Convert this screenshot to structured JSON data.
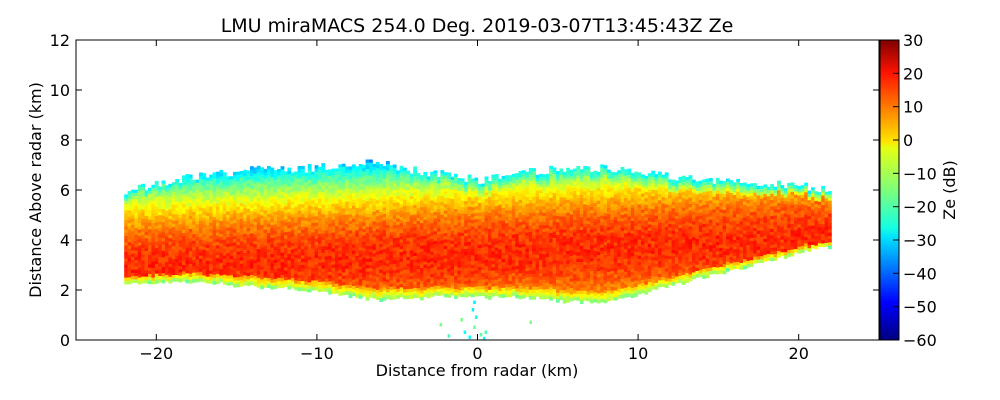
{
  "chart_data": {
    "type": "heatmap",
    "title": "LMU miraMACS 254.0 Deg. 2019-03-07T13:45:43Z  Ze",
    "xlabel": "Distance from radar (km)",
    "ylabel": "Distance Above radar  (km)",
    "xlim": [
      -25,
      25
    ],
    "ylim": [
      0,
      12
    ],
    "x_ticks": [
      "−20",
      "−10",
      "0",
      "10",
      "20"
    ],
    "x_tick_values": [
      -20,
      -10,
      0,
      10,
      20
    ],
    "y_ticks": [
      "0",
      "2",
      "4",
      "6",
      "8",
      "10",
      "12"
    ],
    "y_tick_values": [
      0,
      2,
      4,
      6,
      8,
      10,
      12
    ],
    "colorbar": {
      "label": "Ze (dB)",
      "range": [
        -60,
        30
      ],
      "ticks": [
        "30",
        "20",
        "10",
        "0",
        "−10",
        "−20",
        "−30",
        "−40",
        "−50",
        "−60"
      ],
      "tick_values": [
        30,
        20,
        10,
        0,
        -10,
        -20,
        -30,
        -40,
        -50,
        -60
      ],
      "colormap": "jet"
    },
    "echo_region": {
      "x_extent_km": [
        -22,
        22
      ],
      "top_km": [
        [
          -21.5,
          6.0
        ],
        [
          -20,
          6.3
        ],
        [
          -18,
          6.5
        ],
        [
          -16,
          6.7
        ],
        [
          -14,
          6.8
        ],
        [
          -12,
          6.8
        ],
        [
          -10,
          6.9
        ],
        [
          -8,
          7.0
        ],
        [
          -6,
          7.1
        ],
        [
          -4,
          6.8
        ],
        [
          -2,
          6.6
        ],
        [
          0,
          6.4
        ],
        [
          2,
          6.6
        ],
        [
          4,
          6.8
        ],
        [
          6,
          6.8
        ],
        [
          8,
          6.9
        ],
        [
          10,
          6.7
        ],
        [
          12,
          6.5
        ],
        [
          14,
          6.4
        ],
        [
          16,
          6.3
        ],
        [
          18,
          6.2
        ],
        [
          20,
          6.2
        ],
        [
          21.5,
          6.0
        ]
      ],
      "bottom_km": [
        [
          -21.5,
          2.3
        ],
        [
          -18,
          2.4
        ],
        [
          -14,
          2.2
        ],
        [
          -10,
          2.0
        ],
        [
          -8,
          1.8
        ],
        [
          -6,
          1.7
        ],
        [
          -4,
          1.7
        ],
        [
          -2,
          1.8
        ],
        [
          0,
          1.8
        ],
        [
          2,
          1.8
        ],
        [
          4,
          1.7
        ],
        [
          6,
          1.6
        ],
        [
          8,
          1.6
        ],
        [
          10,
          1.9
        ],
        [
          14,
          2.6
        ],
        [
          18,
          3.2
        ],
        [
          21.5,
          3.8
        ]
      ],
      "core_ze_db": 15,
      "core_center_km": 3.5,
      "edge_ze_db": -25
    },
    "sparse_echoes_km": [
      [
        -1.0,
        0.8
      ],
      [
        -0.8,
        0.3
      ],
      [
        -0.5,
        0.1
      ],
      [
        -0.3,
        1.2
      ],
      [
        -0.2,
        0.5
      ],
      [
        -0.1,
        0.9
      ],
      [
        0.2,
        0.2
      ],
      [
        0.4,
        0.05
      ],
      [
        0.5,
        0.3
      ],
      [
        -1.8,
        0.15
      ],
      [
        -2.3,
        0.6
      ],
      [
        3.3,
        0.7
      ],
      [
        -0.2,
        1.5
      ]
    ]
  }
}
